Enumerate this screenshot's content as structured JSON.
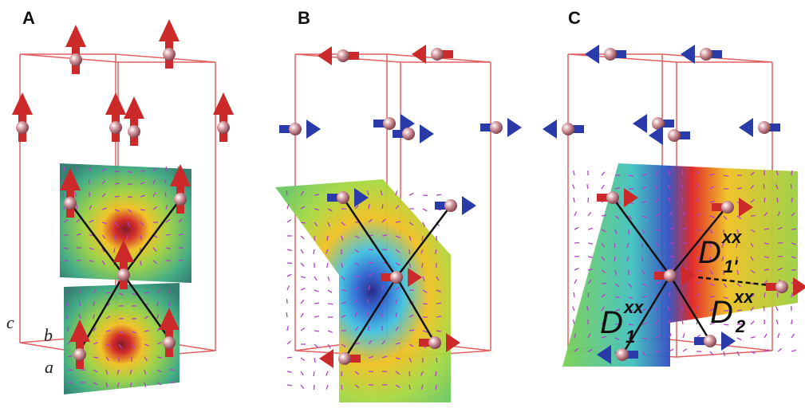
{
  "panels": [
    {
      "id": "A",
      "label": "A"
    },
    {
      "id": "B",
      "label": "B"
    },
    {
      "id": "C",
      "label": "C"
    }
  ],
  "axes": {
    "c": "c",
    "b": "b",
    "a": "a"
  },
  "interaction_labels": [
    {
      "main": "D",
      "sup": "xx",
      "sub": "1'"
    },
    {
      "main": "D",
      "sup": "xx",
      "sub": "1"
    },
    {
      "main": "D",
      "sup": "xx",
      "sub": "2"
    }
  ],
  "colors": {
    "cell_edge": "#e06060",
    "spin_red": "#cc2a2a",
    "spin_blue": "#2a3aa8",
    "atom": "#d89a9e",
    "field_arrow": "#b040c8"
  }
}
